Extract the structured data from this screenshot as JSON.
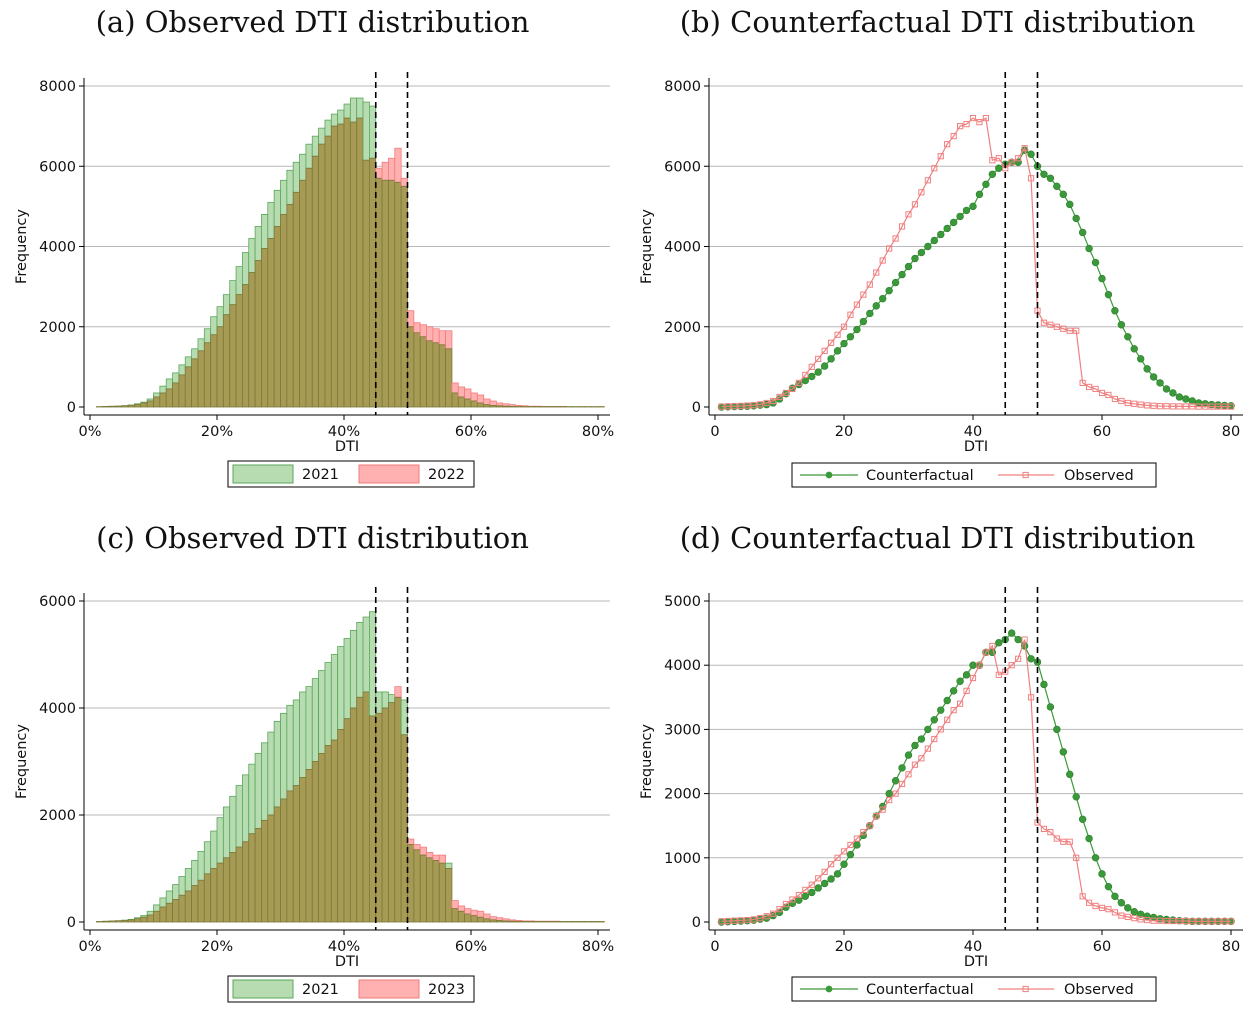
{
  "colors": {
    "green_fill": "#b7dcb2",
    "green_edge": "#5aa75a",
    "red_fill": "#ffb0b0",
    "red_edge": "#f27c7c",
    "overlap_fill": "#a79a55",
    "overlap_edge": "#7a7a38",
    "counterfactual": "#3a9a3a",
    "observed": "#f08080",
    "grid": "#b8b8b8",
    "cutoff": "#000000"
  },
  "chart_data": [
    {
      "id": "a",
      "type": "bar",
      "title": "(a) Observed DTI distribution",
      "xlabel": "DTI",
      "ylabel": "Frequency",
      "xlim": [
        0,
        80
      ],
      "ylim": [
        0,
        8000
      ],
      "xticks": [
        0,
        20,
        40,
        60,
        80
      ],
      "xtick_labels": [
        "0%",
        "20%",
        "40%",
        "60%",
        "80%"
      ],
      "yticks": [
        0,
        2000,
        4000,
        6000,
        8000
      ],
      "cutoffs": [
        45,
        50
      ],
      "bin_start": 1.5,
      "bin_width": 1,
      "legend_position": "bottom",
      "series": [
        {
          "name": "2021",
          "values": [
            10,
            15,
            20,
            25,
            35,
            50,
            80,
            120,
            200,
            350,
            520,
            700,
            850,
            1050,
            1250,
            1450,
            1700,
            1950,
            2250,
            2500,
            2800,
            3150,
            3500,
            3850,
            4200,
            4500,
            4800,
            5100,
            5400,
            5650,
            5900,
            6100,
            6300,
            6550,
            6750,
            6950,
            7150,
            7300,
            7400,
            7550,
            7700,
            7700,
            7600,
            7500,
            5700,
            5650,
            5650,
            5600,
            5500,
            2000,
            1850,
            1750,
            1650,
            1600,
            1550,
            1450,
            350,
            250,
            200,
            150,
            100,
            60,
            40,
            30,
            20,
            15,
            10,
            10,
            10,
            10,
            10,
            10,
            10,
            10,
            10,
            10,
            10,
            10,
            10,
            10
          ]
        },
        {
          "name": "2022",
          "values": [
            10,
            15,
            20,
            25,
            35,
            45,
            65,
            100,
            150,
            250,
            350,
            450,
            600,
            800,
            1000,
            1200,
            1400,
            1600,
            1800,
            2000,
            2300,
            2550,
            2800,
            3050,
            3350,
            3650,
            3950,
            4200,
            4500,
            4800,
            5050,
            5350,
            5650,
            5950,
            6250,
            6550,
            6750,
            7000,
            7050,
            7200,
            7100,
            7200,
            6150,
            6200,
            5950,
            6100,
            6200,
            6450,
            5700,
            2400,
            2100,
            2050,
            2000,
            1950,
            1900,
            1900,
            600,
            500,
            450,
            350,
            300,
            200,
            150,
            100,
            80,
            60,
            40,
            30,
            20,
            20,
            15,
            15,
            15,
            15,
            10,
            10,
            10,
            10,
            10,
            10
          ]
        }
      ]
    },
    {
      "id": "b",
      "type": "line",
      "title": "(b) Counterfactual DTI distribution",
      "xlabel": "DTI",
      "ylabel": "Frequency",
      "xlim": [
        0,
        80
      ],
      "ylim": [
        0,
        8000
      ],
      "xticks": [
        0,
        20,
        40,
        60,
        80
      ],
      "xtick_labels": [
        "0",
        "20",
        "40",
        "60",
        "80"
      ],
      "yticks": [
        0,
        2000,
        4000,
        6000,
        8000
      ],
      "cutoffs": [
        45,
        50
      ],
      "x_start": 1,
      "legend_position": "bottom",
      "series": [
        {
          "name": "Counterfactual",
          "marker": "circle",
          "values": [
            0,
            5,
            10,
            15,
            20,
            30,
            45,
            60,
            100,
            200,
            330,
            470,
            560,
            660,
            760,
            870,
            1020,
            1200,
            1400,
            1580,
            1750,
            1930,
            2130,
            2330,
            2520,
            2700,
            2900,
            3100,
            3300,
            3500,
            3700,
            3850,
            4000,
            4150,
            4300,
            4450,
            4600,
            4750,
            4900,
            5000,
            5300,
            5550,
            5800,
            5950,
            6050,
            6100,
            6100,
            6400,
            6300,
            6000,
            5800,
            5700,
            5500,
            5300,
            5050,
            4700,
            4350,
            3950,
            3600,
            3200,
            2800,
            2400,
            2050,
            1750,
            1450,
            1200,
            950,
            750,
            600,
            450,
            350,
            250,
            200,
            150,
            100,
            80,
            60,
            50,
            40,
            30
          ]
        },
        {
          "name": "Observed",
          "marker": "square",
          "values": [
            10,
            15,
            20,
            25,
            35,
            45,
            65,
            100,
            150,
            250,
            350,
            450,
            600,
            800,
            1000,
            1200,
            1400,
            1600,
            1800,
            2000,
            2300,
            2550,
            2800,
            3050,
            3350,
            3650,
            3950,
            4200,
            4500,
            4800,
            5050,
            5350,
            5650,
            5950,
            6250,
            6550,
            6750,
            7000,
            7050,
            7200,
            7100,
            7200,
            6150,
            6200,
            5950,
            6100,
            6200,
            6450,
            5700,
            2400,
            2100,
            2050,
            2000,
            1950,
            1900,
            1900,
            600,
            500,
            450,
            350,
            300,
            200,
            150,
            100,
            80,
            60,
            40,
            30,
            20,
            20,
            15,
            15,
            15,
            15,
            10,
            10,
            10,
            10,
            10,
            10
          ]
        }
      ]
    },
    {
      "id": "c",
      "type": "bar",
      "title": "(c) Observed DTI distribution",
      "xlabel": "DTI",
      "ylabel": "Frequency",
      "xlim": [
        0,
        80
      ],
      "ylim": [
        0,
        6000
      ],
      "xticks": [
        0,
        20,
        40,
        60,
        80
      ],
      "xtick_labels": [
        "0%",
        "20%",
        "40%",
        "60%",
        "80%"
      ],
      "yticks": [
        0,
        2000,
        4000,
        6000
      ],
      "cutoffs": [
        45,
        50
      ],
      "bin_start": 1.5,
      "bin_width": 1,
      "legend_position": "bottom",
      "series": [
        {
          "name": "2021",
          "values": [
            10,
            15,
            20,
            25,
            35,
            50,
            80,
            120,
            200,
            320,
            450,
            580,
            700,
            850,
            1000,
            1150,
            1320,
            1500,
            1700,
            1950,
            2150,
            2350,
            2550,
            2750,
            2950,
            3150,
            3350,
            3550,
            3750,
            3900,
            4050,
            4150,
            4300,
            4400,
            4550,
            4700,
            4850,
            5000,
            5150,
            5300,
            5450,
            5600,
            5700,
            5800,
            4300,
            4300,
            4250,
            4200,
            4150,
            1450,
            1350,
            1250,
            1200,
            1150,
            1100,
            1100,
            250,
            200,
            150,
            120,
            90,
            60,
            40,
            30,
            20,
            15,
            10,
            10,
            10,
            10,
            10,
            10,
            10,
            10,
            10,
            10,
            10,
            10,
            10,
            10
          ]
        },
        {
          "name": "2023",
          "values": [
            10,
            15,
            20,
            25,
            30,
            40,
            60,
            90,
            130,
            200,
            280,
            350,
            420,
            500,
            580,
            680,
            780,
            900,
            1000,
            1100,
            1200,
            1300,
            1400,
            1500,
            1650,
            1750,
            1900,
            2000,
            2150,
            2300,
            2450,
            2550,
            2700,
            2850,
            3000,
            3150,
            3300,
            3400,
            3600,
            3800,
            4000,
            4200,
            4300,
            3850,
            3900,
            4000,
            4100,
            4400,
            3500,
            1550,
            1450,
            1400,
            1300,
            1250,
            1250,
            1000,
            400,
            300,
            250,
            220,
            200,
            150,
            100,
            80,
            60,
            40,
            30,
            20,
            20,
            15,
            15,
            15,
            15,
            10,
            10,
            10,
            10,
            10,
            10,
            10
          ]
        }
      ]
    },
    {
      "id": "d",
      "type": "line",
      "title": "(d) Counterfactual DTI distribution",
      "xlabel": "DTI",
      "ylabel": "Frequency",
      "xlim": [
        0,
        80
      ],
      "ylim": [
        0,
        5000
      ],
      "xticks": [
        0,
        20,
        40,
        60,
        80
      ],
      "xtick_labels": [
        "0",
        "20",
        "40",
        "60",
        "80"
      ],
      "yticks": [
        0,
        1000,
        2000,
        3000,
        4000,
        5000
      ],
      "cutoffs": [
        45,
        50
      ],
      "x_start": 1,
      "legend_position": "bottom",
      "series": [
        {
          "name": "Counterfactual",
          "marker": "circle",
          "values": [
            0,
            5,
            10,
            15,
            20,
            30,
            45,
            60,
            100,
            150,
            230,
            290,
            340,
            400,
            460,
            530,
            600,
            670,
            750,
            900,
            1050,
            1200,
            1350,
            1500,
            1650,
            1800,
            2000,
            2200,
            2400,
            2600,
            2750,
            2850,
            3000,
            3150,
            3300,
            3450,
            3600,
            3750,
            3850,
            4000,
            4000,
            4200,
            4200,
            4350,
            4400,
            4500,
            4400,
            4300,
            4100,
            4050,
            3700,
            3350,
            3000,
            2650,
            2300,
            1950,
            1600,
            1300,
            1000,
            750,
            550,
            400,
            300,
            220,
            160,
            120,
            90,
            70,
            50,
            40,
            30,
            20,
            15,
            10,
            10,
            10,
            10,
            10,
            10,
            10
          ]
        },
        {
          "name": "Observed",
          "marker": "square",
          "values": [
            10,
            15,
            20,
            25,
            30,
            40,
            60,
            90,
            130,
            200,
            280,
            350,
            420,
            500,
            580,
            680,
            780,
            900,
            1000,
            1100,
            1200,
            1300,
            1400,
            1500,
            1650,
            1750,
            1900,
            2000,
            2150,
            2300,
            2450,
            2550,
            2700,
            2850,
            3000,
            3150,
            3300,
            3400,
            3600,
            3800,
            4000,
            4200,
            4300,
            3850,
            3900,
            4000,
            4100,
            4400,
            3500,
            1550,
            1450,
            1400,
            1300,
            1250,
            1250,
            1000,
            400,
            300,
            250,
            220,
            200,
            150,
            100,
            80,
            60,
            40,
            30,
            20,
            20,
            15,
            15,
            15,
            15,
            10,
            10,
            10,
            10,
            10,
            10,
            10
          ]
        }
      ]
    }
  ]
}
